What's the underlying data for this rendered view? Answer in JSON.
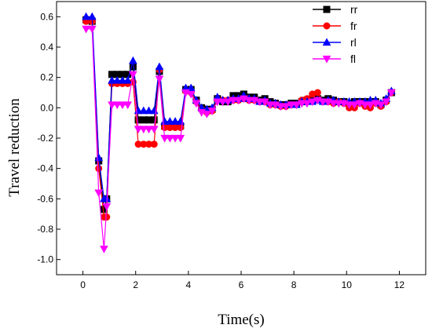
{
  "chart_data": {
    "type": "line",
    "title": "",
    "xlabel": "Time(s)",
    "ylabel": "Travel reduction",
    "xlim": [
      -1,
      13
    ],
    "ylim": [
      -1.1,
      0.7
    ],
    "xticks": [
      0,
      2,
      4,
      6,
      8,
      10,
      12
    ],
    "yticks": [
      0.6,
      0.4,
      0.2,
      0.0,
      -0.2,
      -0.4,
      -0.6,
      -0.8,
      -1.0
    ],
    "xtick_labels": [
      "0",
      "2",
      "4",
      "6",
      "8",
      "10",
      "12"
    ],
    "ytick_labels": [
      "0.6",
      "0.4",
      "0.2",
      "0.0",
      "-0.2",
      "-0.4",
      "-0.6",
      "-0.8",
      "-1.0"
    ],
    "grid": false,
    "legend_position": "top-right",
    "x": [
      0.12,
      0.35,
      0.6,
      0.8,
      0.9,
      1.1,
      1.3,
      1.5,
      1.7,
      1.9,
      2.1,
      2.3,
      2.5,
      2.7,
      2.9,
      3.1,
      3.3,
      3.5,
      3.7,
      3.9,
      4.1,
      4.3,
      4.5,
      4.7,
      4.9,
      5.1,
      5.3,
      5.5,
      5.7,
      5.9,
      6.1,
      6.3,
      6.5,
      6.7,
      6.9,
      7.1,
      7.3,
      7.5,
      7.7,
      7.9,
      8.1,
      8.3,
      8.5,
      8.7,
      8.9,
      9.1,
      9.3,
      9.5,
      9.7,
      9.9,
      10.1,
      10.3,
      10.5,
      10.7,
      10.9,
      11.1,
      11.3,
      11.5,
      11.7
    ],
    "series": [
      {
        "name": "rr",
        "color": "#000000",
        "marker": "square",
        "values": [
          0.58,
          0.57,
          -0.35,
          -0.67,
          -0.6,
          0.22,
          0.22,
          0.22,
          0.22,
          0.27,
          -0.08,
          -0.08,
          -0.08,
          -0.08,
          0.24,
          -0.12,
          -0.12,
          -0.12,
          -0.12,
          0.12,
          0.12,
          0.05,
          0.0,
          -0.01,
          -0.01,
          0.06,
          0.04,
          0.04,
          0.08,
          0.08,
          0.09,
          0.07,
          0.07,
          0.05,
          0.06,
          0.04,
          0.03,
          0.02,
          0.02,
          0.03,
          0.03,
          0.04,
          0.05,
          0.05,
          0.06,
          0.05,
          0.06,
          0.05,
          0.04,
          0.04,
          0.03,
          0.04,
          0.04,
          0.04,
          0.04,
          0.04,
          0.02,
          0.05,
          0.1
        ]
      },
      {
        "name": "fr",
        "color": "#ff0000",
        "marker": "circle",
        "values": [
          0.57,
          0.57,
          -0.4,
          -0.72,
          -0.72,
          0.16,
          0.16,
          0.16,
          0.16,
          0.17,
          -0.24,
          -0.24,
          -0.24,
          -0.24,
          0.25,
          -0.13,
          -0.13,
          -0.13,
          -0.13,
          0.11,
          0.1,
          0.04,
          -0.01,
          -0.03,
          -0.02,
          0.05,
          0.05,
          0.05,
          0.05,
          0.05,
          0.06,
          0.05,
          0.05,
          0.04,
          0.04,
          0.02,
          0.02,
          0.01,
          0.01,
          0.02,
          0.02,
          0.05,
          0.06,
          0.09,
          0.1,
          0.04,
          0.04,
          0.03,
          0.04,
          0.03,
          0.0,
          0.0,
          0.03,
          0.01,
          0.0,
          0.03,
          0.01,
          0.04,
          0.1
        ]
      },
      {
        "name": "rl",
        "color": "#0000ff",
        "marker": "triangle-up",
        "values": [
          0.6,
          0.6,
          -0.33,
          -0.6,
          -0.6,
          0.18,
          0.18,
          0.18,
          0.18,
          0.31,
          -0.02,
          -0.02,
          -0.02,
          -0.02,
          0.27,
          -0.09,
          -0.09,
          -0.09,
          -0.09,
          0.13,
          0.13,
          0.05,
          0.0,
          -0.01,
          0.0,
          0.07,
          0.05,
          0.05,
          0.06,
          0.06,
          0.08,
          0.06,
          0.06,
          0.04,
          0.05,
          0.03,
          0.03,
          0.02,
          0.02,
          0.02,
          0.02,
          0.04,
          0.04,
          0.04,
          0.05,
          0.04,
          0.05,
          0.05,
          0.04,
          0.04,
          0.04,
          0.04,
          0.04,
          0.04,
          0.05,
          0.05,
          0.03,
          0.06,
          0.11
        ]
      },
      {
        "name": "fl",
        "color": "#ff00ff",
        "marker": "triangle-down",
        "values": [
          0.52,
          0.52,
          -0.56,
          -0.93,
          -0.65,
          0.02,
          0.02,
          0.02,
          0.02,
          0.22,
          -0.14,
          -0.14,
          -0.14,
          -0.14,
          0.19,
          -0.2,
          -0.2,
          -0.2,
          -0.2,
          0.1,
          0.09,
          0.03,
          -0.03,
          -0.04,
          -0.02,
          0.04,
          0.04,
          0.04,
          0.05,
          0.05,
          0.06,
          0.05,
          0.05,
          0.04,
          0.04,
          0.02,
          0.02,
          0.01,
          0.01,
          0.02,
          0.02,
          0.03,
          0.03,
          0.04,
          0.05,
          0.04,
          0.04,
          0.03,
          0.03,
          0.03,
          0.02,
          0.02,
          0.03,
          0.02,
          0.02,
          0.03,
          0.02,
          0.04,
          0.1
        ]
      }
    ]
  }
}
